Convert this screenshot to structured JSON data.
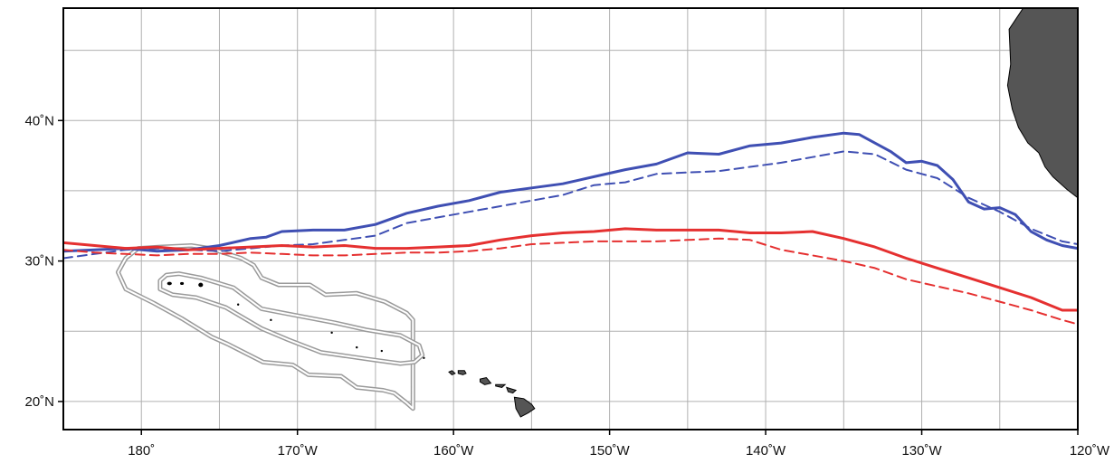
{
  "map": {
    "projection": "equirectangular",
    "lon_range": [
      -185,
      -120
    ],
    "lat_range": [
      18,
      48
    ],
    "graticule": {
      "lon_step": 5,
      "lat_step": 5,
      "color": "#b0b0b0"
    },
    "colors": {
      "land_fill": "#555555",
      "land_outline": "#000000",
      "blue": "#3f4fb3",
      "red": "#e53030",
      "boundary_outer": "#9a9a9a",
      "boundary_inner": "#c8c8c8"
    },
    "x_ticks": [
      {
        "lon": -180,
        "label": "180˚"
      },
      {
        "lon": -170,
        "label": "170˚W"
      },
      {
        "lon": -160,
        "label": "160˚W"
      },
      {
        "lon": -150,
        "label": "150˚W"
      },
      {
        "lon": -140,
        "label": "140˚W"
      },
      {
        "lon": -130,
        "label": "130˚W"
      },
      {
        "lon": -120,
        "label": "120˚W"
      }
    ],
    "y_ticks": [
      {
        "lat": 40,
        "label": "40˚N"
      },
      {
        "lat": 30,
        "label": "30˚N"
      },
      {
        "lat": 20,
        "label": "20˚N"
      }
    ],
    "lines": [
      {
        "color_key": "blue",
        "style": "solid",
        "points": [
          [
            -185,
            30.7
          ],
          [
            -183,
            30.8
          ],
          [
            -181,
            30.9
          ],
          [
            -179,
            30.7
          ],
          [
            -177,
            30.8
          ],
          [
            -175,
            31.1
          ],
          [
            -173,
            31.6
          ],
          [
            -172,
            31.7
          ],
          [
            -171,
            32.1
          ],
          [
            -169,
            32.2
          ],
          [
            -167,
            32.2
          ],
          [
            -165,
            32.6
          ],
          [
            -163,
            33.4
          ],
          [
            -161,
            33.9
          ],
          [
            -159,
            34.3
          ],
          [
            -157,
            34.9
          ],
          [
            -155,
            35.2
          ],
          [
            -153,
            35.5
          ],
          [
            -151,
            36.0
          ],
          [
            -149,
            36.5
          ],
          [
            -147,
            36.9
          ],
          [
            -145,
            37.7
          ],
          [
            -143,
            37.6
          ],
          [
            -141,
            38.2
          ],
          [
            -139,
            38.4
          ],
          [
            -137,
            38.8
          ],
          [
            -135,
            39.1
          ],
          [
            -134,
            39.0
          ],
          [
            -132,
            37.8
          ],
          [
            -131,
            37.0
          ],
          [
            -130,
            37.1
          ],
          [
            -129,
            36.8
          ],
          [
            -128,
            35.8
          ],
          [
            -127,
            34.2
          ],
          [
            -126,
            33.7
          ],
          [
            -125,
            33.8
          ],
          [
            -124,
            33.3
          ],
          [
            -123,
            32.1
          ],
          [
            -122,
            31.5
          ],
          [
            -121,
            31.1
          ],
          [
            -120,
            30.9
          ]
        ]
      },
      {
        "color_key": "blue",
        "style": "dashed",
        "points": [
          [
            -185,
            30.2
          ],
          [
            -183,
            30.5
          ],
          [
            -181,
            30.8
          ],
          [
            -179,
            30.9
          ],
          [
            -177,
            30.8
          ],
          [
            -175,
            30.7
          ],
          [
            -173,
            30.9
          ],
          [
            -171,
            31.1
          ],
          [
            -169,
            31.2
          ],
          [
            -167,
            31.5
          ],
          [
            -165,
            31.8
          ],
          [
            -163,
            32.7
          ],
          [
            -161,
            33.1
          ],
          [
            -159,
            33.5
          ],
          [
            -157,
            33.9
          ],
          [
            -155,
            34.3
          ],
          [
            -153,
            34.7
          ],
          [
            -151,
            35.4
          ],
          [
            -149,
            35.6
          ],
          [
            -147,
            36.2
          ],
          [
            -145,
            36.3
          ],
          [
            -143,
            36.4
          ],
          [
            -141,
            36.7
          ],
          [
            -139,
            37.0
          ],
          [
            -137,
            37.4
          ],
          [
            -135,
            37.8
          ],
          [
            -133,
            37.6
          ],
          [
            -131,
            36.5
          ],
          [
            -129,
            35.9
          ],
          [
            -127,
            34.5
          ],
          [
            -125,
            33.5
          ],
          [
            -123,
            32.3
          ],
          [
            -121,
            31.4
          ],
          [
            -120,
            31.2
          ]
        ]
      },
      {
        "color_key": "red",
        "style": "solid",
        "points": [
          [
            -185,
            31.3
          ],
          [
            -183,
            31.1
          ],
          [
            -181,
            30.9
          ],
          [
            -179,
            31.0
          ],
          [
            -177,
            30.8
          ],
          [
            -175,
            30.9
          ],
          [
            -173,
            31.0
          ],
          [
            -171,
            31.1
          ],
          [
            -169,
            31.0
          ],
          [
            -167,
            31.1
          ],
          [
            -165,
            30.9
          ],
          [
            -163,
            30.9
          ],
          [
            -161,
            31.0
          ],
          [
            -159,
            31.1
          ],
          [
            -157,
            31.5
          ],
          [
            -155,
            31.8
          ],
          [
            -153,
            32.0
          ],
          [
            -151,
            32.1
          ],
          [
            -149,
            32.3
          ],
          [
            -147,
            32.2
          ],
          [
            -145,
            32.2
          ],
          [
            -143,
            32.2
          ],
          [
            -141,
            32.0
          ],
          [
            -139,
            32.0
          ],
          [
            -137,
            32.1
          ],
          [
            -135,
            31.6
          ],
          [
            -133,
            31.0
          ],
          [
            -131,
            30.2
          ],
          [
            -129,
            29.5
          ],
          [
            -127,
            28.8
          ],
          [
            -125,
            28.1
          ],
          [
            -123,
            27.4
          ],
          [
            -121,
            26.5
          ],
          [
            -120,
            26.5
          ]
        ]
      },
      {
        "color_key": "red",
        "style": "dashed",
        "points": [
          [
            -185,
            30.8
          ],
          [
            -183,
            30.6
          ],
          [
            -181,
            30.5
          ],
          [
            -179,
            30.4
          ],
          [
            -177,
            30.5
          ],
          [
            -175,
            30.5
          ],
          [
            -173,
            30.6
          ],
          [
            -171,
            30.5
          ],
          [
            -169,
            30.4
          ],
          [
            -167,
            30.4
          ],
          [
            -165,
            30.5
          ],
          [
            -163,
            30.6
          ],
          [
            -161,
            30.6
          ],
          [
            -159,
            30.7
          ],
          [
            -157,
            30.9
          ],
          [
            -155,
            31.2
          ],
          [
            -153,
            31.3
          ],
          [
            -151,
            31.4
          ],
          [
            -149,
            31.4
          ],
          [
            -147,
            31.4
          ],
          [
            -145,
            31.5
          ],
          [
            -143,
            31.6
          ],
          [
            -141,
            31.5
          ],
          [
            -139,
            30.8
          ],
          [
            -137,
            30.4
          ],
          [
            -135,
            30.0
          ],
          [
            -133,
            29.5
          ],
          [
            -131,
            28.7
          ],
          [
            -129,
            28.2
          ],
          [
            -127,
            27.7
          ],
          [
            -125,
            27.1
          ],
          [
            -123,
            26.5
          ],
          [
            -121,
            25.8
          ],
          [
            -120,
            25.5
          ]
        ]
      }
    ],
    "boundaries": {
      "outer": [
        [
          -181.0,
          30.2
        ],
        [
          -180.2,
          30.9
        ],
        [
          -178.8,
          31.0
        ],
        [
          -176.8,
          31.1
        ],
        [
          -175.6,
          30.9
        ],
        [
          -173.6,
          30.2
        ],
        [
          -172.8,
          29.7
        ],
        [
          -172.3,
          28.8
        ],
        [
          -171.2,
          28.3
        ],
        [
          -169.2,
          28.3
        ],
        [
          -168.2,
          27.6
        ],
        [
          -166.2,
          27.7
        ],
        [
          -164.4,
          27.1
        ],
        [
          -163.0,
          26.3
        ],
        [
          -162.6,
          25.8
        ],
        [
          -162.6,
          19.5
        ],
        [
          -163.0,
          19.9
        ],
        [
          -163.8,
          20.6
        ],
        [
          -164.5,
          20.8
        ],
        [
          -166.2,
          21.0
        ],
        [
          -167.2,
          21.8
        ],
        [
          -169.3,
          21.9
        ],
        [
          -170.3,
          22.6
        ],
        [
          -172.2,
          22.8
        ],
        [
          -174.5,
          24.1
        ],
        [
          -175.5,
          24.6
        ],
        [
          -177.4,
          25.9
        ],
        [
          -179.2,
          27.0
        ],
        [
          -181.0,
          28.0
        ],
        [
          -181.5,
          29.2
        ],
        [
          -181.0,
          30.2
        ]
      ],
      "inner": [
        [
          -178.4,
          29.0
        ],
        [
          -177.6,
          29.1
        ],
        [
          -176.2,
          28.8
        ],
        [
          -174.1,
          28.1
        ],
        [
          -173.5,
          27.6
        ],
        [
          -172.3,
          26.6
        ],
        [
          -170.9,
          26.3
        ],
        [
          -167.6,
          25.6
        ],
        [
          -165.6,
          25.1
        ],
        [
          -163.4,
          24.7
        ],
        [
          -162.2,
          24.0
        ],
        [
          -162.0,
          23.3
        ],
        [
          -162.5,
          22.8
        ],
        [
          -163.4,
          22.7
        ],
        [
          -165.4,
          23.0
        ],
        [
          -168.5,
          23.5
        ],
        [
          -170.6,
          24.4
        ],
        [
          -172.3,
          25.2
        ],
        [
          -174.6,
          26.7
        ],
        [
          -176.5,
          27.4
        ],
        [
          -178.0,
          27.6
        ],
        [
          -178.8,
          28.0
        ],
        [
          -178.8,
          28.6
        ],
        [
          -178.4,
          29.0
        ]
      ]
    },
    "islands": [
      [
        -178.2,
        28.4,
        0.15,
        0.12
      ],
      [
        -177.4,
        28.4,
        0.12,
        0.1
      ],
      [
        -176.2,
        28.3,
        0.15,
        0.15
      ],
      [
        -173.8,
        26.9,
        0.05,
        0.05
      ],
      [
        -171.7,
        25.8,
        0.06,
        0.05
      ],
      [
        -167.8,
        24.9,
        0.05,
        0.04
      ],
      [
        -166.2,
        23.85,
        0.07,
        0.06
      ],
      [
        -164.6,
        23.6,
        0.05,
        0.04
      ],
      [
        -161.9,
        23.1,
        0.05,
        0.04
      ]
    ],
    "hawaii": [
      [
        [
          -160.3,
          22.1
        ],
        [
          -160.1,
          22.2
        ],
        [
          -159.9,
          22.0
        ],
        [
          -160.1,
          21.9
        ],
        [
          -160.3,
          22.1
        ]
      ],
      [
        [
          -159.7,
          22.2
        ],
        [
          -159.3,
          22.2
        ],
        [
          -159.2,
          22.0
        ],
        [
          -159.4,
          21.9
        ],
        [
          -159.7,
          22.0
        ],
        [
          -159.7,
          22.2
        ]
      ],
      [
        [
          -158.3,
          21.6
        ],
        [
          -157.9,
          21.7
        ],
        [
          -157.6,
          21.3
        ],
        [
          -158.0,
          21.2
        ],
        [
          -158.3,
          21.4
        ],
        [
          -158.3,
          21.6
        ]
      ],
      [
        [
          -157.3,
          21.2
        ],
        [
          -156.7,
          21.2
        ],
        [
          -156.9,
          21.0
        ],
        [
          -157.3,
          21.1
        ],
        [
          -157.3,
          21.2
        ]
      ],
      [
        [
          -156.6,
          21.0
        ],
        [
          -156.3,
          20.9
        ],
        [
          -156.0,
          20.8
        ],
        [
          -156.2,
          20.6
        ],
        [
          -156.5,
          20.7
        ],
        [
          -156.6,
          21.0
        ]
      ],
      [
        [
          -156.1,
          20.3
        ],
        [
          -155.5,
          20.2
        ],
        [
          -155.0,
          19.8
        ],
        [
          -154.8,
          19.5
        ],
        [
          -155.2,
          19.2
        ],
        [
          -155.7,
          18.9
        ],
        [
          -156.0,
          19.5
        ],
        [
          -156.1,
          20.3
        ]
      ]
    ],
    "coast": [
      [
        -120,
        48
      ],
      [
        -123.5,
        48
      ],
      [
        -124.4,
        46.5
      ],
      [
        -124.3,
        44
      ],
      [
        -124.5,
        42.5
      ],
      [
        -124.2,
        40.8
      ],
      [
        -123.8,
        39.5
      ],
      [
        -123.2,
        38.4
      ],
      [
        -122.5,
        37.7
      ],
      [
        -122.1,
        36.7
      ],
      [
        -121.6,
        36.0
      ],
      [
        -120.7,
        35.1
      ],
      [
        -120.0,
        34.5
      ],
      [
        -120,
        48
      ]
    ]
  }
}
